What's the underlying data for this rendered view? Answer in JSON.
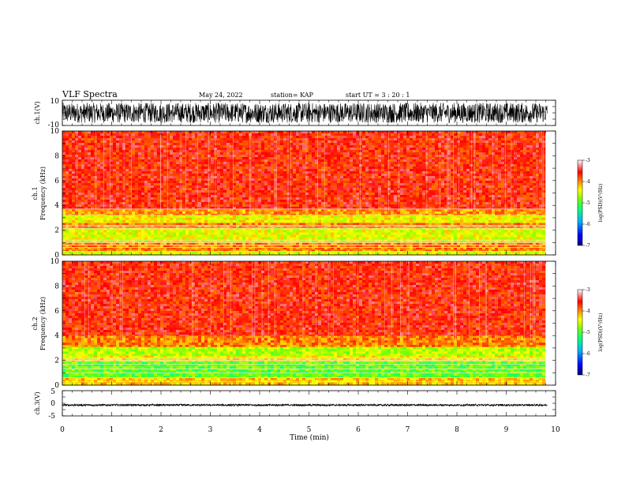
{
  "header": {
    "title": "VLF Spectra",
    "date": "May 24, 2022",
    "station": "station= KAP",
    "start": "start  UT  =  3 : 20 : 1"
  },
  "chart_data": [
    {
      "type": "line",
      "name": "ch1-waveform",
      "ylabel": "ch.1(V)",
      "ylim": [
        -10,
        10
      ],
      "y_ticks": [
        "10",
        "-10"
      ],
      "xlim": [
        0,
        10
      ],
      "data_xmax": 9.83,
      "waveform_envelope": {
        "typical_min": -8,
        "typical_max": 8
      }
    },
    {
      "type": "heatmap",
      "name": "ch1-spectrogram",
      "ylabel": [
        "ch.1",
        "Frequency (kHz)"
      ],
      "ylim": [
        0,
        10
      ],
      "y_ticks": [
        "0",
        "2",
        "4",
        "6",
        "8",
        "10"
      ],
      "xlim": [
        0,
        10
      ],
      "data_xmax": 9.83,
      "colorbar": {
        "label": "log(PSD)(V²/Hz)",
        "range": [
          -7,
          -3
        ],
        "ticks": [
          "-3",
          "-4",
          "-5",
          "-6",
          "-7"
        ]
      },
      "bands": [
        {
          "from_khz": 0.0,
          "to_khz": 0.3,
          "log_psd": -4.6
        },
        {
          "from_khz": 0.3,
          "to_khz": 1.0,
          "log_psd": -4.0
        },
        {
          "from_khz": 1.0,
          "to_khz": 2.2,
          "log_psd": -4.6
        },
        {
          "from_khz": 2.2,
          "to_khz": 2.6,
          "log_psd": -4.0
        },
        {
          "from_khz": 2.6,
          "to_khz": 3.2,
          "log_psd": -4.5
        },
        {
          "from_khz": 3.2,
          "to_khz": 3.7,
          "log_psd": -4.1
        },
        {
          "from_khz": 3.7,
          "to_khz": 10.0,
          "log_psd": -3.6
        }
      ],
      "harmonic_lines_khz": [
        0.3,
        0.6,
        0.8,
        1.0,
        1.2,
        2.1,
        2.3,
        2.4,
        3.2,
        3.7
      ]
    },
    {
      "type": "heatmap",
      "name": "ch2-spectrogram",
      "ylabel": [
        "ch.2",
        "Frequency (kHz)"
      ],
      "ylim": [
        0,
        10
      ],
      "y_ticks": [
        "0",
        "2",
        "4",
        "6",
        "8",
        "10"
      ],
      "xlim": [
        0,
        10
      ],
      "data_xmax": 9.83,
      "colorbar": {
        "label": "log(PSD)(V²/Hz)",
        "range": [
          -7,
          -3
        ],
        "ticks": [
          "-3",
          "-4",
          "-5",
          "-6",
          "-7"
        ]
      },
      "bands": [
        {
          "from_khz": 0.0,
          "to_khz": 0.6,
          "log_psd": -4.3
        },
        {
          "from_khz": 0.6,
          "to_khz": 1.9,
          "log_psd": -5.1
        },
        {
          "from_khz": 1.9,
          "to_khz": 2.4,
          "log_psd": -4.5
        },
        {
          "from_khz": 2.4,
          "to_khz": 3.1,
          "log_psd": -4.8
        },
        {
          "from_khz": 3.1,
          "to_khz": 4.0,
          "log_psd": -4.0
        },
        {
          "from_khz": 4.0,
          "to_khz": 10.0,
          "log_psd": -3.6
        }
      ],
      "harmonic_lines_khz": [
        0.3,
        0.6,
        1.0,
        1.3,
        1.7,
        2.0,
        2.2
      ]
    },
    {
      "type": "line",
      "name": "ch3-waveform",
      "ylabel": "ch.3(V)",
      "ylim": [
        -5,
        5
      ],
      "y_ticks": [
        "5",
        "0",
        "-5"
      ],
      "xlim": [
        0,
        10
      ],
      "data_xmax": 9.83,
      "xlabel": "Time (min)",
      "x_ticks": [
        "0",
        "1",
        "2",
        "3",
        "4",
        "5",
        "6",
        "7",
        "8",
        "9",
        "10"
      ],
      "waveform_envelope": {
        "typical_min": -1.1,
        "typical_max": -0.3
      }
    }
  ],
  "colors": {
    "axis": "#000000",
    "colormap": [
      "#000080",
      "#0000ff",
      "#00b0ff",
      "#00ff80",
      "#80ff00",
      "#ffff00",
      "#ff8000",
      "#ff0000",
      "#ffffff"
    ]
  }
}
